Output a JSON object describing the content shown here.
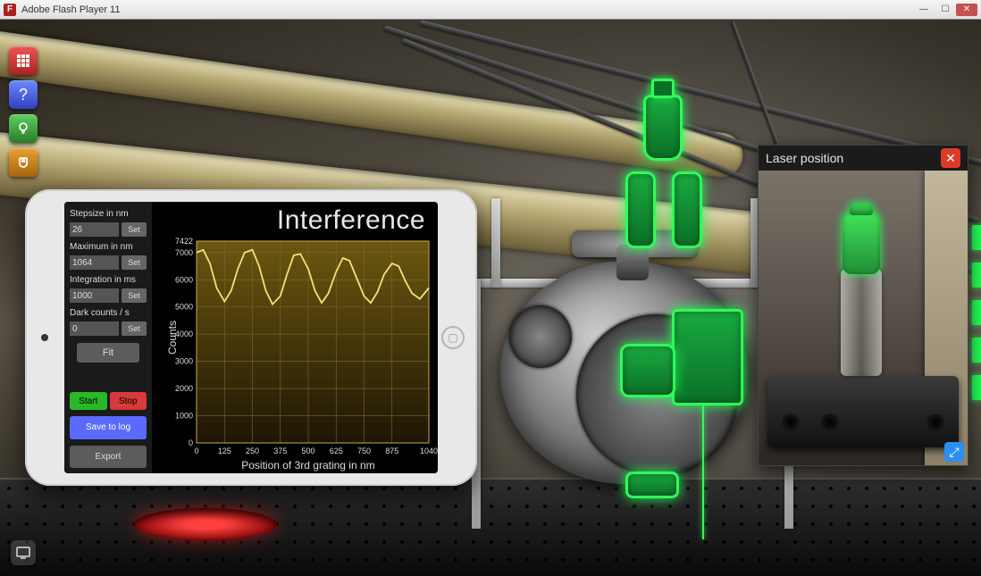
{
  "window": {
    "title": "Adobe Flash Player 11"
  },
  "toolbar": {
    "grid_tip": "Menu",
    "help_tip": "Help",
    "hint_tip": "Hint",
    "magnet_tip": "Toggle"
  },
  "tablet": {
    "title": "Interference",
    "ylabel": "Counts",
    "xlabel": "Position of 3rd grating in nm",
    "params": {
      "stepsize": {
        "label": "Stepsize in nm",
        "value": "26",
        "set": "Set"
      },
      "maximum": {
        "label": "Maximum in nm",
        "value": "1064",
        "set": "Set"
      },
      "integration": {
        "label": "Integration in ms",
        "value": "1000",
        "set": "Set"
      },
      "dark": {
        "label": "Dark counts / s",
        "value": "0",
        "set": "Set"
      }
    },
    "fit": "Fit",
    "actions": {
      "start": "Start",
      "stop": "Stop",
      "save": "Save to log",
      "export": "Export"
    },
    "chart": {
      "type": "line",
      "xlim": [
        0,
        1040
      ],
      "ylim": [
        0,
        7422
      ],
      "xticks": [
        0,
        125,
        250,
        375,
        500,
        625,
        750,
        875,
        1040
      ],
      "yticks": [
        0,
        1000,
        2000,
        3000,
        4000,
        5000,
        6000,
        7000,
        7422
      ],
      "line_color": "#f2e27a",
      "plot_fill_top": "#6b5710",
      "plot_fill_bottom": "#1e1605",
      "grid_color": "#7d6a29",
      "data": [
        [
          0,
          7000
        ],
        [
          30,
          7100
        ],
        [
          60,
          6600
        ],
        [
          90,
          5700
        ],
        [
          125,
          5200
        ],
        [
          155,
          5600
        ],
        [
          185,
          6400
        ],
        [
          215,
          7000
        ],
        [
          250,
          7100
        ],
        [
          280,
          6500
        ],
        [
          310,
          5600
        ],
        [
          340,
          5100
        ],
        [
          375,
          5400
        ],
        [
          405,
          6200
        ],
        [
          435,
          6900
        ],
        [
          465,
          6950
        ],
        [
          500,
          6400
        ],
        [
          530,
          5600
        ],
        [
          560,
          5150
        ],
        [
          590,
          5500
        ],
        [
          625,
          6300
        ],
        [
          655,
          6800
        ],
        [
          685,
          6700
        ],
        [
          715,
          6100
        ],
        [
          750,
          5400
        ],
        [
          780,
          5150
        ],
        [
          810,
          5550
        ],
        [
          840,
          6200
        ],
        [
          875,
          6600
        ],
        [
          905,
          6500
        ],
        [
          935,
          5950
        ],
        [
          965,
          5500
        ],
        [
          1000,
          5300
        ],
        [
          1040,
          5700
        ]
      ]
    }
  },
  "inset": {
    "title": "Laser position"
  }
}
